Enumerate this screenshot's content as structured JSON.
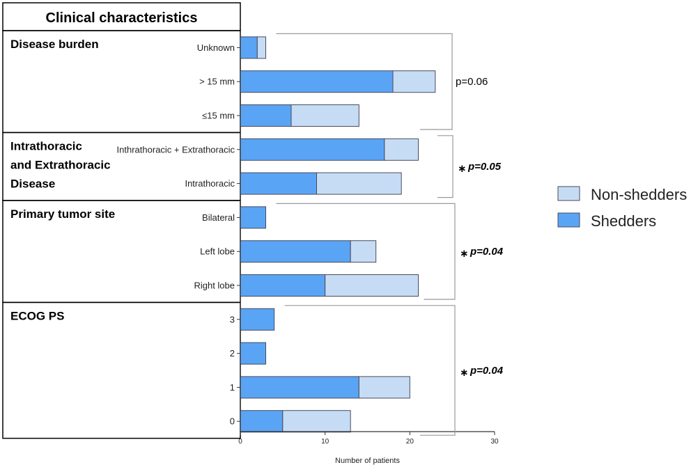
{
  "chart_data": {
    "type": "bar",
    "orientation": "horizontal",
    "stacked": true,
    "table_header": "Clinical characteristics",
    "xlabel": "Number of patients",
    "xlim": [
      0,
      30
    ],
    "xticks": [
      0,
      10,
      20,
      30
    ],
    "legend_position": "right",
    "series": [
      {
        "name": "Non-shedders",
        "color": "#c6dcf5"
      },
      {
        "name": "Shedders",
        "color": "#5aa4f5"
      }
    ],
    "groups": [
      {
        "title_lines": [
          "Disease burden"
        ],
        "pvalue": "p=0.06",
        "significant": false,
        "rows": [
          {
            "label": "Unknown",
            "shedders": 2,
            "non_shedders": 1
          },
          {
            "label": "> 15 mm",
            "shedders": 18,
            "non_shedders": 5
          },
          {
            "label": "≤15 mm",
            "shedders": 6,
            "non_shedders": 8
          }
        ]
      },
      {
        "title_lines": [
          "Intrathoracic",
          "and Extrathoracic",
          "Disease"
        ],
        "pvalue": "p=0.05",
        "significant": true,
        "rows": [
          {
            "label": "Inthrathoracic + Extrathoracic",
            "shedders": 17,
            "non_shedders": 4
          },
          {
            "label": "Intrathoracic",
            "shedders": 9,
            "non_shedders": 10
          }
        ]
      },
      {
        "title_lines": [
          "Primary tumor site"
        ],
        "pvalue": "p=0.04",
        "significant": true,
        "rows": [
          {
            "label": "Bilateral",
            "shedders": 3,
            "non_shedders": 0
          },
          {
            "label": "Left lobe",
            "shedders": 13,
            "non_shedders": 3
          },
          {
            "label": "Right lobe",
            "shedders": 10,
            "non_shedders": 11
          }
        ]
      },
      {
        "title_lines": [
          "ECOG PS"
        ],
        "pvalue": "p=0.04",
        "significant": true,
        "rows": [
          {
            "label": "3",
            "shedders": 4,
            "non_shedders": 0
          },
          {
            "label": "2",
            "shedders": 3,
            "non_shedders": 0
          },
          {
            "label": "1",
            "shedders": 14,
            "non_shedders": 6
          },
          {
            "label": "0",
            "shedders": 5,
            "non_shedders": 8
          }
        ]
      }
    ]
  }
}
